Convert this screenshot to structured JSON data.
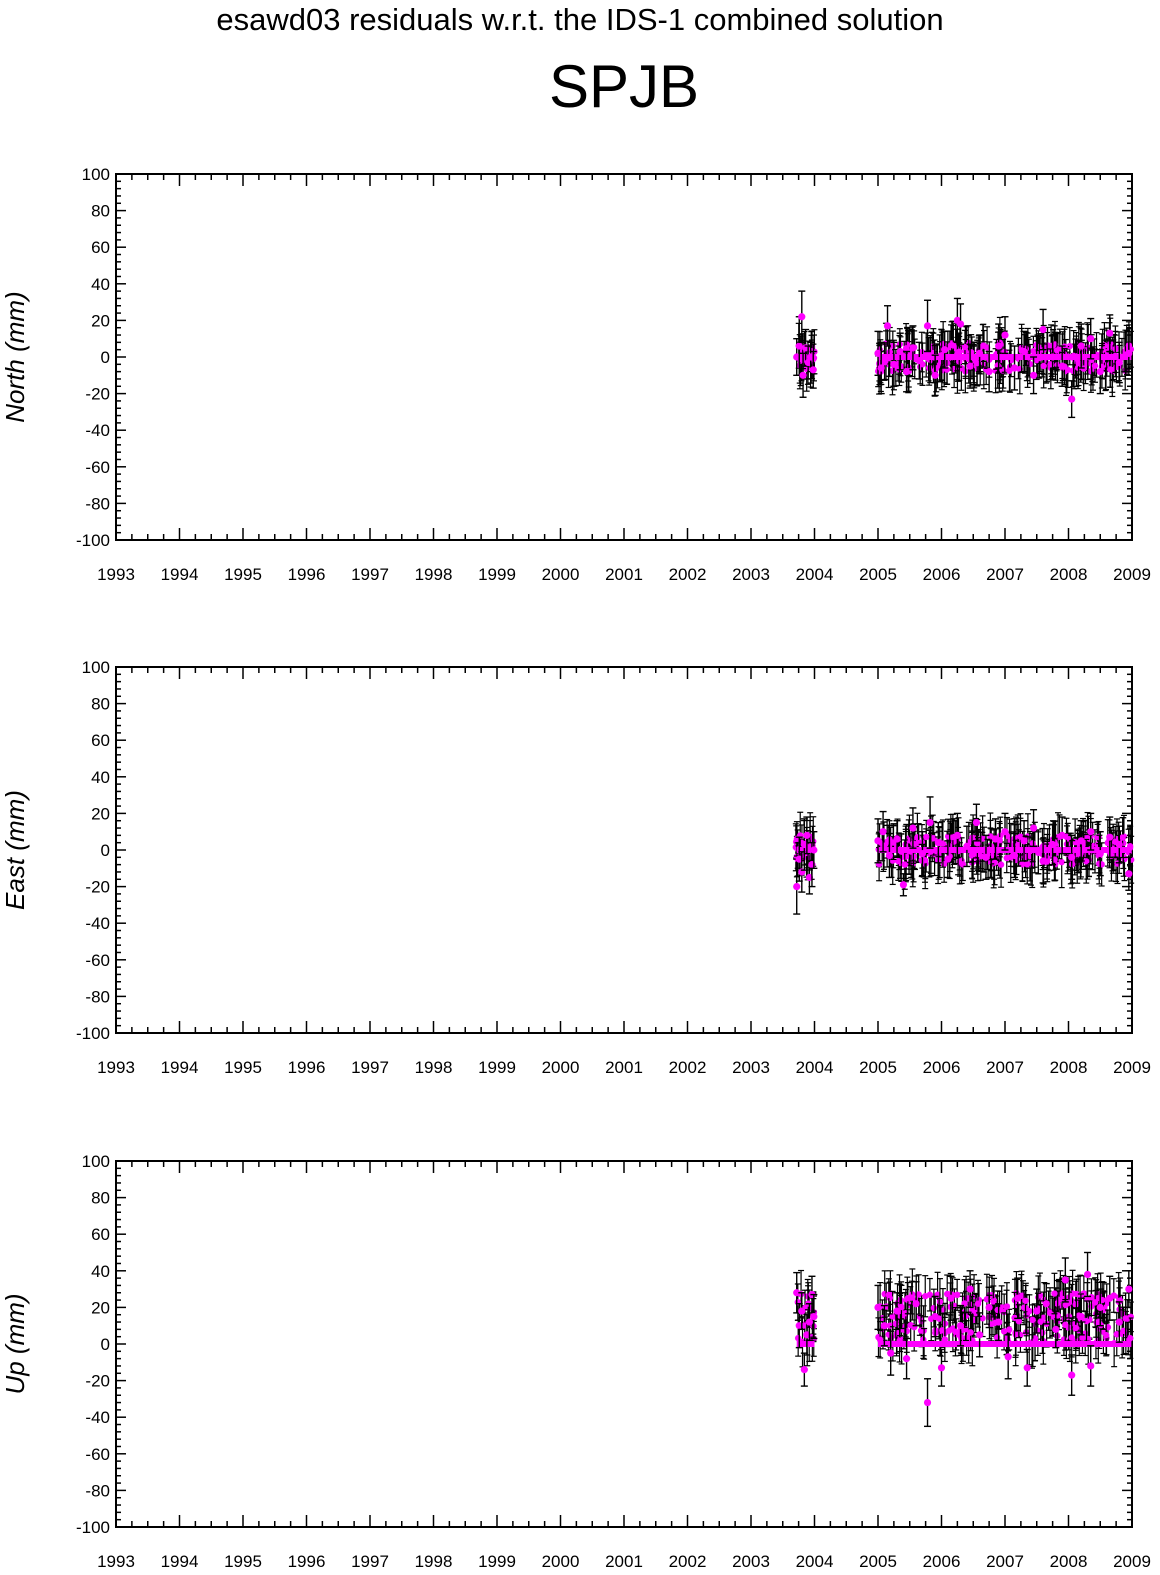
{
  "title": "esawd03 residuals w.r.t. the IDS-1 combined solution",
  "station": "SPJB",
  "colors": {
    "point": "#ff00ff",
    "errorbar": "#000000",
    "axis": "#000000"
  },
  "chart_data": [
    {
      "type": "scatter",
      "ylabel": "North (mm)",
      "xlim": [
        1993,
        2009
      ],
      "ylim": [
        -100,
        100
      ],
      "xticks": [
        "1993",
        "1994",
        "1995",
        "1996",
        "1997",
        "1998",
        "1999",
        "2000",
        "2001",
        "2002",
        "2003",
        "2004",
        "2005",
        "2006",
        "2007",
        "2008",
        "2009"
      ],
      "yticks": [
        "100",
        "80",
        "60",
        "40",
        "20",
        "0",
        "-20",
        "-40",
        "-60",
        "-80",
        "-100"
      ],
      "grid": false,
      "series": [
        {
          "values": [
            {
              "x": 2003.72,
              "y": 0,
              "err": 10
            },
            {
              "x": 2003.76,
              "y": 6,
              "err": 16
            },
            {
              "x": 2003.8,
              "y": 22,
              "err": 14
            },
            {
              "x": 2003.82,
              "y": -10,
              "err": 12
            },
            {
              "x": 2003.86,
              "y": 5,
              "err": 10
            },
            {
              "x": 2003.9,
              "y": -3,
              "err": 9
            },
            {
              "x": 2003.94,
              "y": 0,
              "err": 8
            },
            {
              "x": 2003.98,
              "y": -7,
              "err": 10
            },
            {
              "x": 2005.0,
              "y": 2,
              "err": 12
            },
            {
              "x": 2005.05,
              "y": -6,
              "err": 14
            },
            {
              "x": 2005.15,
              "y": 17,
              "err": 11
            },
            {
              "x": 2005.25,
              "y": -4,
              "err": 12
            },
            {
              "x": 2005.35,
              "y": 3,
              "err": 10
            },
            {
              "x": 2005.45,
              "y": -8,
              "err": 11
            },
            {
              "x": 2005.55,
              "y": 5,
              "err": 12
            },
            {
              "x": 2005.65,
              "y": -2,
              "err": 10
            },
            {
              "x": 2005.78,
              "y": 17,
              "err": 14
            },
            {
              "x": 2005.9,
              "y": -10,
              "err": 11
            },
            {
              "x": 2006.05,
              "y": 4,
              "err": 10
            },
            {
              "x": 2006.25,
              "y": 20,
              "err": 12
            },
            {
              "x": 2006.3,
              "y": 18,
              "err": 11
            },
            {
              "x": 2006.45,
              "y": -5,
              "err": 12
            },
            {
              "x": 2006.6,
              "y": 2,
              "err": 10
            },
            {
              "x": 2006.75,
              "y": -8,
              "err": 11
            },
            {
              "x": 2006.9,
              "y": 6,
              "err": 12
            },
            {
              "x": 2007.0,
              "y": 12,
              "err": 10
            },
            {
              "x": 2007.15,
              "y": -6,
              "err": 12
            },
            {
              "x": 2007.3,
              "y": 3,
              "err": 11
            },
            {
              "x": 2007.45,
              "y": -10,
              "err": 10
            },
            {
              "x": 2007.6,
              "y": 15,
              "err": 11
            },
            {
              "x": 2007.75,
              "y": 0,
              "err": 12
            },
            {
              "x": 2007.9,
              "y": -5,
              "err": 11
            },
            {
              "x": 2008.05,
              "y": -23,
              "err": 10
            },
            {
              "x": 2008.2,
              "y": 6,
              "err": 12
            },
            {
              "x": 2008.35,
              "y": 10,
              "err": 11
            },
            {
              "x": 2008.5,
              "y": -8,
              "err": 12
            },
            {
              "x": 2008.65,
              "y": 13,
              "err": 10
            },
            {
              "x": 2008.8,
              "y": -3,
              "err": 11
            },
            {
              "x": 2008.95,
              "y": 2,
              "err": 12
            }
          ]
        }
      ]
    },
    {
      "type": "scatter",
      "ylabel": "East (mm)",
      "xlim": [
        1993,
        2009
      ],
      "ylim": [
        -100,
        100
      ],
      "xticks": [
        "1993",
        "1994",
        "1995",
        "1996",
        "1997",
        "1998",
        "1999",
        "2000",
        "2001",
        "2002",
        "2003",
        "2004",
        "2005",
        "2006",
        "2007",
        "2008",
        "2009"
      ],
      "yticks": [
        "100",
        "80",
        "60",
        "40",
        "20",
        "0",
        "-20",
        "-40",
        "-60",
        "-80",
        "-100"
      ],
      "grid": false,
      "series": [
        {
          "values": [
            {
              "x": 2003.72,
              "y": -20,
              "err": 15
            },
            {
              "x": 2003.76,
              "y": -5,
              "err": 12
            },
            {
              "x": 2003.8,
              "y": -12,
              "err": 11
            },
            {
              "x": 2003.84,
              "y": 3,
              "err": 14
            },
            {
              "x": 2003.88,
              "y": 8,
              "err": 10
            },
            {
              "x": 2003.92,
              "y": -15,
              "err": 9
            },
            {
              "x": 2003.96,
              "y": -8,
              "err": 12
            },
            {
              "x": 2003.99,
              "y": 0,
              "err": 10
            },
            {
              "x": 2005.0,
              "y": 5,
              "err": 12
            },
            {
              "x": 2005.08,
              "y": 10,
              "err": 11
            },
            {
              "x": 2005.18,
              "y": -3,
              "err": 12
            },
            {
              "x": 2005.3,
              "y": 6,
              "err": 10
            },
            {
              "x": 2005.4,
              "y": -19,
              "err": 6
            },
            {
              "x": 2005.55,
              "y": 12,
              "err": 11
            },
            {
              "x": 2005.7,
              "y": -2,
              "err": 12
            },
            {
              "x": 2005.82,
              "y": 15,
              "err": 14
            },
            {
              "x": 2005.95,
              "y": 4,
              "err": 11
            },
            {
              "x": 2006.1,
              "y": -5,
              "err": 10
            },
            {
              "x": 2006.25,
              "y": 8,
              "err": 12
            },
            {
              "x": 2006.4,
              "y": 2,
              "err": 11
            },
            {
              "x": 2006.55,
              "y": 15,
              "err": 10
            },
            {
              "x": 2006.7,
              "y": -4,
              "err": 12
            },
            {
              "x": 2006.85,
              "y": 6,
              "err": 11
            },
            {
              "x": 2007.0,
              "y": 10,
              "err": 10
            },
            {
              "x": 2007.15,
              "y": -3,
              "err": 12
            },
            {
              "x": 2007.3,
              "y": 5,
              "err": 11
            },
            {
              "x": 2007.45,
              "y": 12,
              "err": 10
            },
            {
              "x": 2007.6,
              "y": -6,
              "err": 12
            },
            {
              "x": 2007.75,
              "y": 3,
              "err": 11
            },
            {
              "x": 2007.9,
              "y": 8,
              "err": 10
            },
            {
              "x": 2008.05,
              "y": -4,
              "err": 12
            },
            {
              "x": 2008.2,
              "y": 5,
              "err": 11
            },
            {
              "x": 2008.35,
              "y": 10,
              "err": 10
            },
            {
              "x": 2008.5,
              "y": -2,
              "err": 12
            },
            {
              "x": 2008.65,
              "y": 7,
              "err": 11
            },
            {
              "x": 2008.8,
              "y": 3,
              "err": 10
            },
            {
              "x": 2008.95,
              "y": -13,
              "err": 9
            }
          ]
        }
      ]
    },
    {
      "type": "scatter",
      "ylabel": "Up (mm)",
      "xlim": [
        1993,
        2009
      ],
      "ylim": [
        -100,
        100
      ],
      "xticks": [
        "1993",
        "1994",
        "1995",
        "1996",
        "1997",
        "1998",
        "1999",
        "2000",
        "2001",
        "2002",
        "2003",
        "2004",
        "2005",
        "2006",
        "2007",
        "2008",
        "2009"
      ],
      "yticks": [
        "100",
        "80",
        "60",
        "40",
        "20",
        "0",
        "-20",
        "-40",
        "-60",
        "-80",
        "-100"
      ],
      "grid": false,
      "series": [
        {
          "values": [
            {
              "x": 2003.72,
              "y": 28,
              "err": 11
            },
            {
              "x": 2003.76,
              "y": 10,
              "err": 12
            },
            {
              "x": 2003.8,
              "y": 18,
              "err": 10
            },
            {
              "x": 2003.84,
              "y": -14,
              "err": 9
            },
            {
              "x": 2003.88,
              "y": 5,
              "err": 11
            },
            {
              "x": 2003.92,
              "y": 12,
              "err": 10
            },
            {
              "x": 2003.96,
              "y": 27,
              "err": 10
            },
            {
              "x": 2003.99,
              "y": 15,
              "err": 12
            },
            {
              "x": 2005.0,
              "y": 20,
              "err": 12
            },
            {
              "x": 2005.1,
              "y": 10,
              "err": 11
            },
            {
              "x": 2005.2,
              "y": -5,
              "err": 12
            },
            {
              "x": 2005.3,
              "y": 18,
              "err": 10
            },
            {
              "x": 2005.45,
              "y": -8,
              "err": 11
            },
            {
              "x": 2005.6,
              "y": 22,
              "err": 12
            },
            {
              "x": 2005.78,
              "y": -32,
              "err": 13
            },
            {
              "x": 2005.9,
              "y": 15,
              "err": 11
            },
            {
              "x": 2006.0,
              "y": -13,
              "err": 10
            },
            {
              "x": 2006.15,
              "y": 25,
              "err": 12
            },
            {
              "x": 2006.3,
              "y": 10,
              "err": 11
            },
            {
              "x": 2006.45,
              "y": 30,
              "err": 10
            },
            {
              "x": 2006.6,
              "y": 5,
              "err": 12
            },
            {
              "x": 2006.75,
              "y": 20,
              "err": 11
            },
            {
              "x": 2006.9,
              "y": 12,
              "err": 10
            },
            {
              "x": 2007.05,
              "y": -7,
              "err": 12
            },
            {
              "x": 2007.2,
              "y": 25,
              "err": 11
            },
            {
              "x": 2007.35,
              "y": -13,
              "err": 10
            },
            {
              "x": 2007.5,
              "y": 18,
              "err": 12
            },
            {
              "x": 2007.65,
              "y": 22,
              "err": 11
            },
            {
              "x": 2007.8,
              "y": 8,
              "err": 10
            },
            {
              "x": 2007.95,
              "y": 35,
              "err": 12
            },
            {
              "x": 2008.05,
              "y": -17,
              "err": 11
            },
            {
              "x": 2008.2,
              "y": 15,
              "err": 10
            },
            {
              "x": 2008.3,
              "y": 38,
              "err": 12
            },
            {
              "x": 2008.35,
              "y": -12,
              "err": 11
            },
            {
              "x": 2008.5,
              "y": 20,
              "err": 10
            },
            {
              "x": 2008.65,
              "y": 25,
              "err": 12
            },
            {
              "x": 2008.8,
              "y": 12,
              "err": 11
            },
            {
              "x": 2008.95,
              "y": 30,
              "err": 10
            }
          ]
        }
      ]
    }
  ]
}
